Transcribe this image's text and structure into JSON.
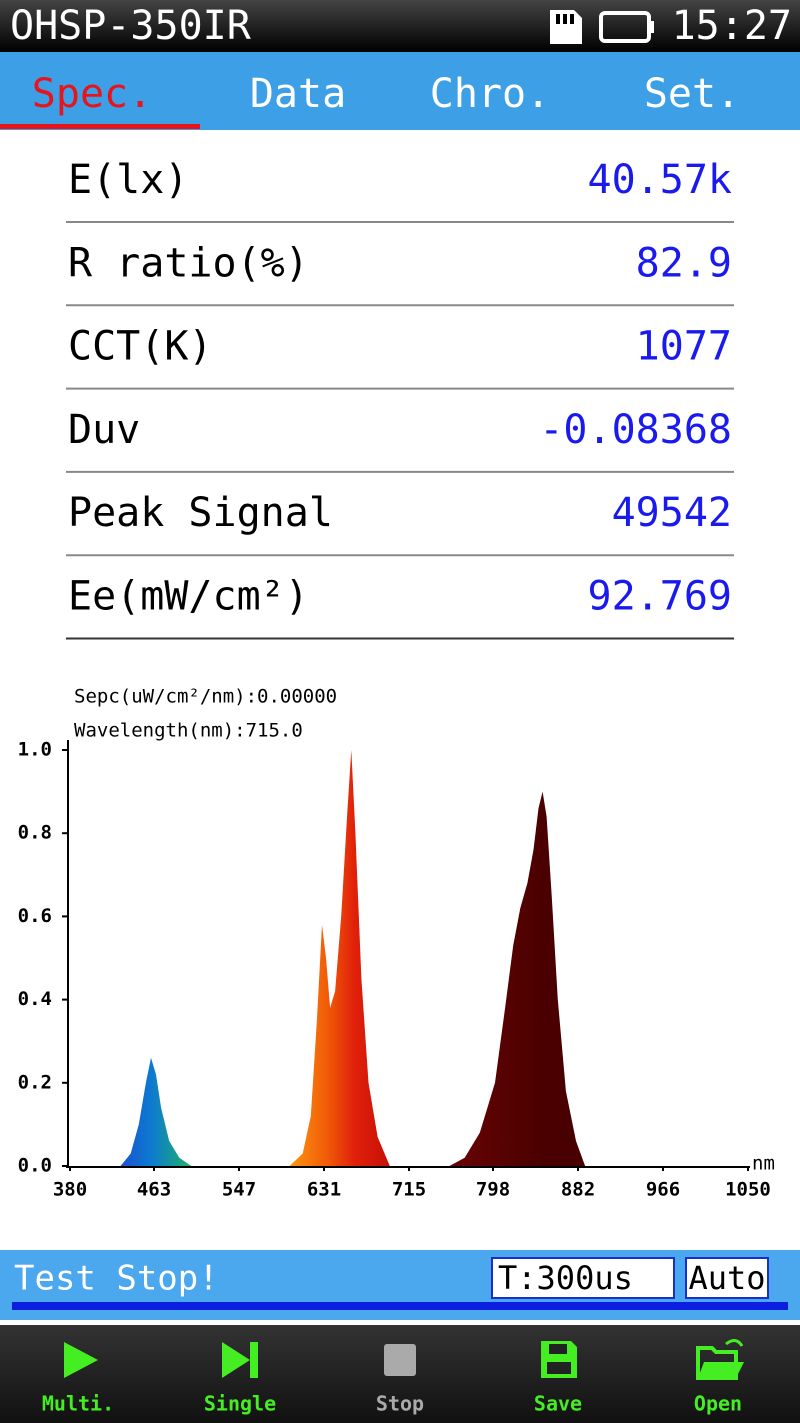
{
  "status_bar": {
    "title": "OHSP-350IR",
    "time": "15:27"
  },
  "tabs": [
    "Spec.",
    "Data",
    "Chro.",
    "Set."
  ],
  "measurements": [
    {
      "label": "E(lx)",
      "value": "40.57k"
    },
    {
      "label": "R ratio(%)",
      "value": "82.9"
    },
    {
      "label": "CCT(K)",
      "value": "1077"
    },
    {
      "label": "Duv",
      "value": "-0.08368"
    },
    {
      "label": "Peak Signal",
      "value": "49542"
    },
    {
      "label": "Ee(mW/cm²)",
      "value": "92.769"
    }
  ],
  "chart_data": {
    "type": "area",
    "annotations": [
      "Sepc(uW/cm²/nm):0.00000",
      "Wavelength(nm):715.0"
    ],
    "x_unit": "nm",
    "x": [
      380,
      430,
      440,
      448,
      455,
      460,
      465,
      470,
      478,
      488,
      500,
      597,
      610,
      618,
      624,
      629,
      633,
      637,
      642,
      648,
      654,
      658,
      662,
      668,
      675,
      684,
      696,
      755,
      770,
      785,
      800,
      810,
      818,
      825,
      832,
      838,
      843,
      847,
      851,
      856,
      862,
      870,
      880,
      889,
      1050
    ],
    "values": [
      0,
      0,
      0.03,
      0.1,
      0.2,
      0.26,
      0.22,
      0.14,
      0.06,
      0.02,
      0,
      0,
      0.03,
      0.12,
      0.35,
      0.58,
      0.5,
      0.38,
      0.42,
      0.6,
      0.85,
      1.0,
      0.8,
      0.45,
      0.2,
      0.07,
      0,
      0,
      0.02,
      0.08,
      0.2,
      0.38,
      0.53,
      0.62,
      0.68,
      0.76,
      0.86,
      0.9,
      0.84,
      0.65,
      0.4,
      0.18,
      0.06,
      0,
      0
    ],
    "xlim": [
      380,
      1050
    ],
    "ylim": [
      0,
      1
    ],
    "xticks": [
      380,
      463,
      547,
      631,
      715,
      798,
      882,
      966,
      1050
    ],
    "yticks": [
      {
        "value": 0,
        "label": "0.0"
      },
      0.2,
      0.4,
      0.6,
      0.8,
      {
        "value": 1,
        "label": "1.0"
      }
    ]
  },
  "status": {
    "message": "Test Stop!",
    "integration": "T:300us",
    "mode": "Auto"
  },
  "toolbar": [
    "Multi.",
    "Single",
    "Stop",
    "Save",
    "Open"
  ]
}
